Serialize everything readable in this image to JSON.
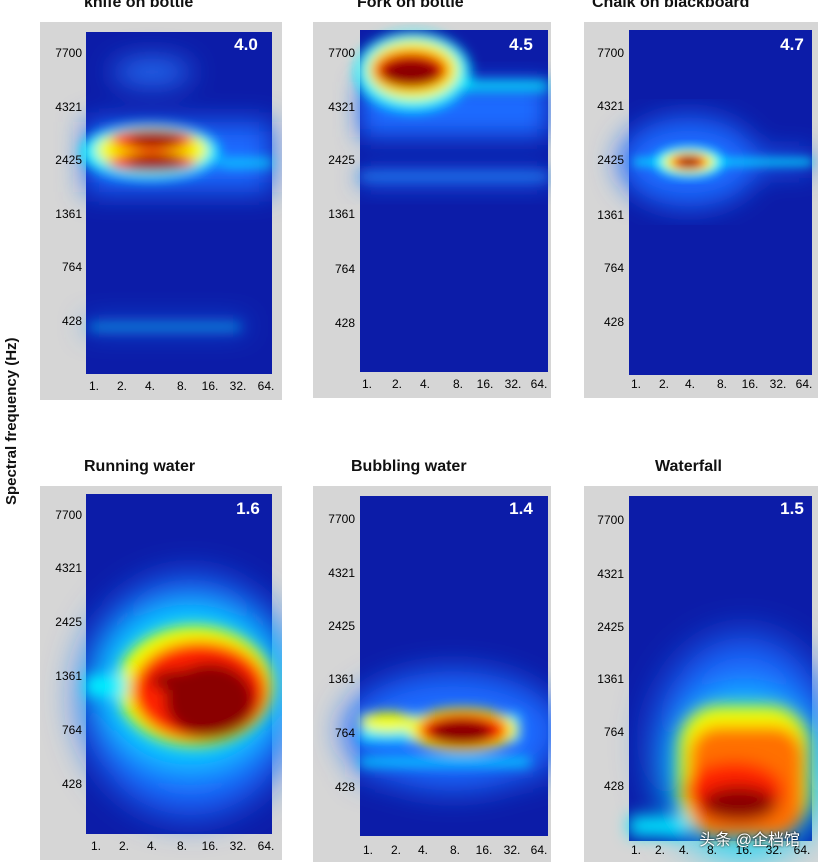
{
  "ylabel": "Spectral frequency (Hz)",
  "watermark": "头条 @企档馆",
  "colormap": [
    "#00008f",
    "#0000ff",
    "#00ffff",
    "#ffff00",
    "#ff0000",
    "#800000"
  ],
  "chart_data": [
    {
      "type": "heatmap",
      "title": "knife on bottle",
      "index": "4.0",
      "yticks": [
        "7700",
        "4321",
        "2425",
        "1361",
        "764",
        "428"
      ],
      "xticks": [
        "1.",
        "2.",
        "4.",
        "8.",
        "16.",
        "32.",
        "64."
      ],
      "hotspots": [
        {
          "x": 4,
          "y": 3200,
          "intensity": 1.0,
          "note": "main band"
        },
        {
          "x": 4,
          "y": 2500,
          "intensity": 1.0,
          "note": "main band"
        },
        {
          "x": 4,
          "y": 6200,
          "intensity": 0.35
        },
        {
          "x": 4,
          "y": 400,
          "intensity": 0.3
        }
      ]
    },
    {
      "type": "heatmap",
      "title": "Fork on bottle",
      "index": "4.5",
      "yticks": [
        "7700",
        "4321",
        "2425",
        "1361",
        "764",
        "428"
      ],
      "xticks": [
        "1.",
        "2.",
        "4.",
        "8.",
        "16.",
        "32.",
        "64."
      ],
      "hotspots": [
        {
          "x": 4,
          "y": 6000,
          "intensity": 1.0
        },
        {
          "x": 8,
          "y": 2300,
          "intensity": 0.3
        }
      ]
    },
    {
      "type": "heatmap",
      "title": "Chalk on blackboard",
      "index": "4.7",
      "yticks": [
        "7700",
        "4321",
        "2425",
        "1361",
        "764",
        "428"
      ],
      "xticks": [
        "1.",
        "2.",
        "4.",
        "8.",
        "16.",
        "32.",
        "64."
      ],
      "hotspots": [
        {
          "x": 4,
          "y": 2425,
          "intensity": 1.0
        }
      ]
    },
    {
      "type": "heatmap",
      "title": "Running water",
      "index": "1.6",
      "yticks": [
        "7700",
        "4321",
        "2425",
        "1361",
        "764",
        "428"
      ],
      "xticks": [
        "1.",
        "2.",
        "4.",
        "8.",
        "16.",
        "32.",
        "64."
      ],
      "hotspots": [
        {
          "x": 16,
          "y": 1100,
          "intensity": 1.0
        },
        {
          "x": 16,
          "y": 1361,
          "intensity": 0.9
        }
      ]
    },
    {
      "type": "heatmap",
      "title": "Bubbling water",
      "index": "1.4",
      "yticks": [
        "7700",
        "4321",
        "2425",
        "1361",
        "764",
        "428"
      ],
      "xticks": [
        "1.",
        "2.",
        "4.",
        "8.",
        "16.",
        "32.",
        "64."
      ],
      "hotspots": [
        {
          "x": 8,
          "y": 764,
          "intensity": 1.0
        },
        {
          "x": 2,
          "y": 800,
          "intensity": 0.45
        }
      ]
    },
    {
      "type": "heatmap",
      "title": "Waterfall",
      "index": "1.5",
      "yticks": [
        "7700",
        "4321",
        "2425",
        "1361",
        "764",
        "428"
      ],
      "xticks": [
        "1.",
        "2.",
        "4.",
        "8.",
        "16.",
        "32.",
        "64."
      ],
      "hotspots": [
        {
          "x": 16,
          "y": 350,
          "intensity": 1.0
        },
        {
          "x": 16,
          "y": 600,
          "intensity": 0.85
        }
      ]
    }
  ]
}
